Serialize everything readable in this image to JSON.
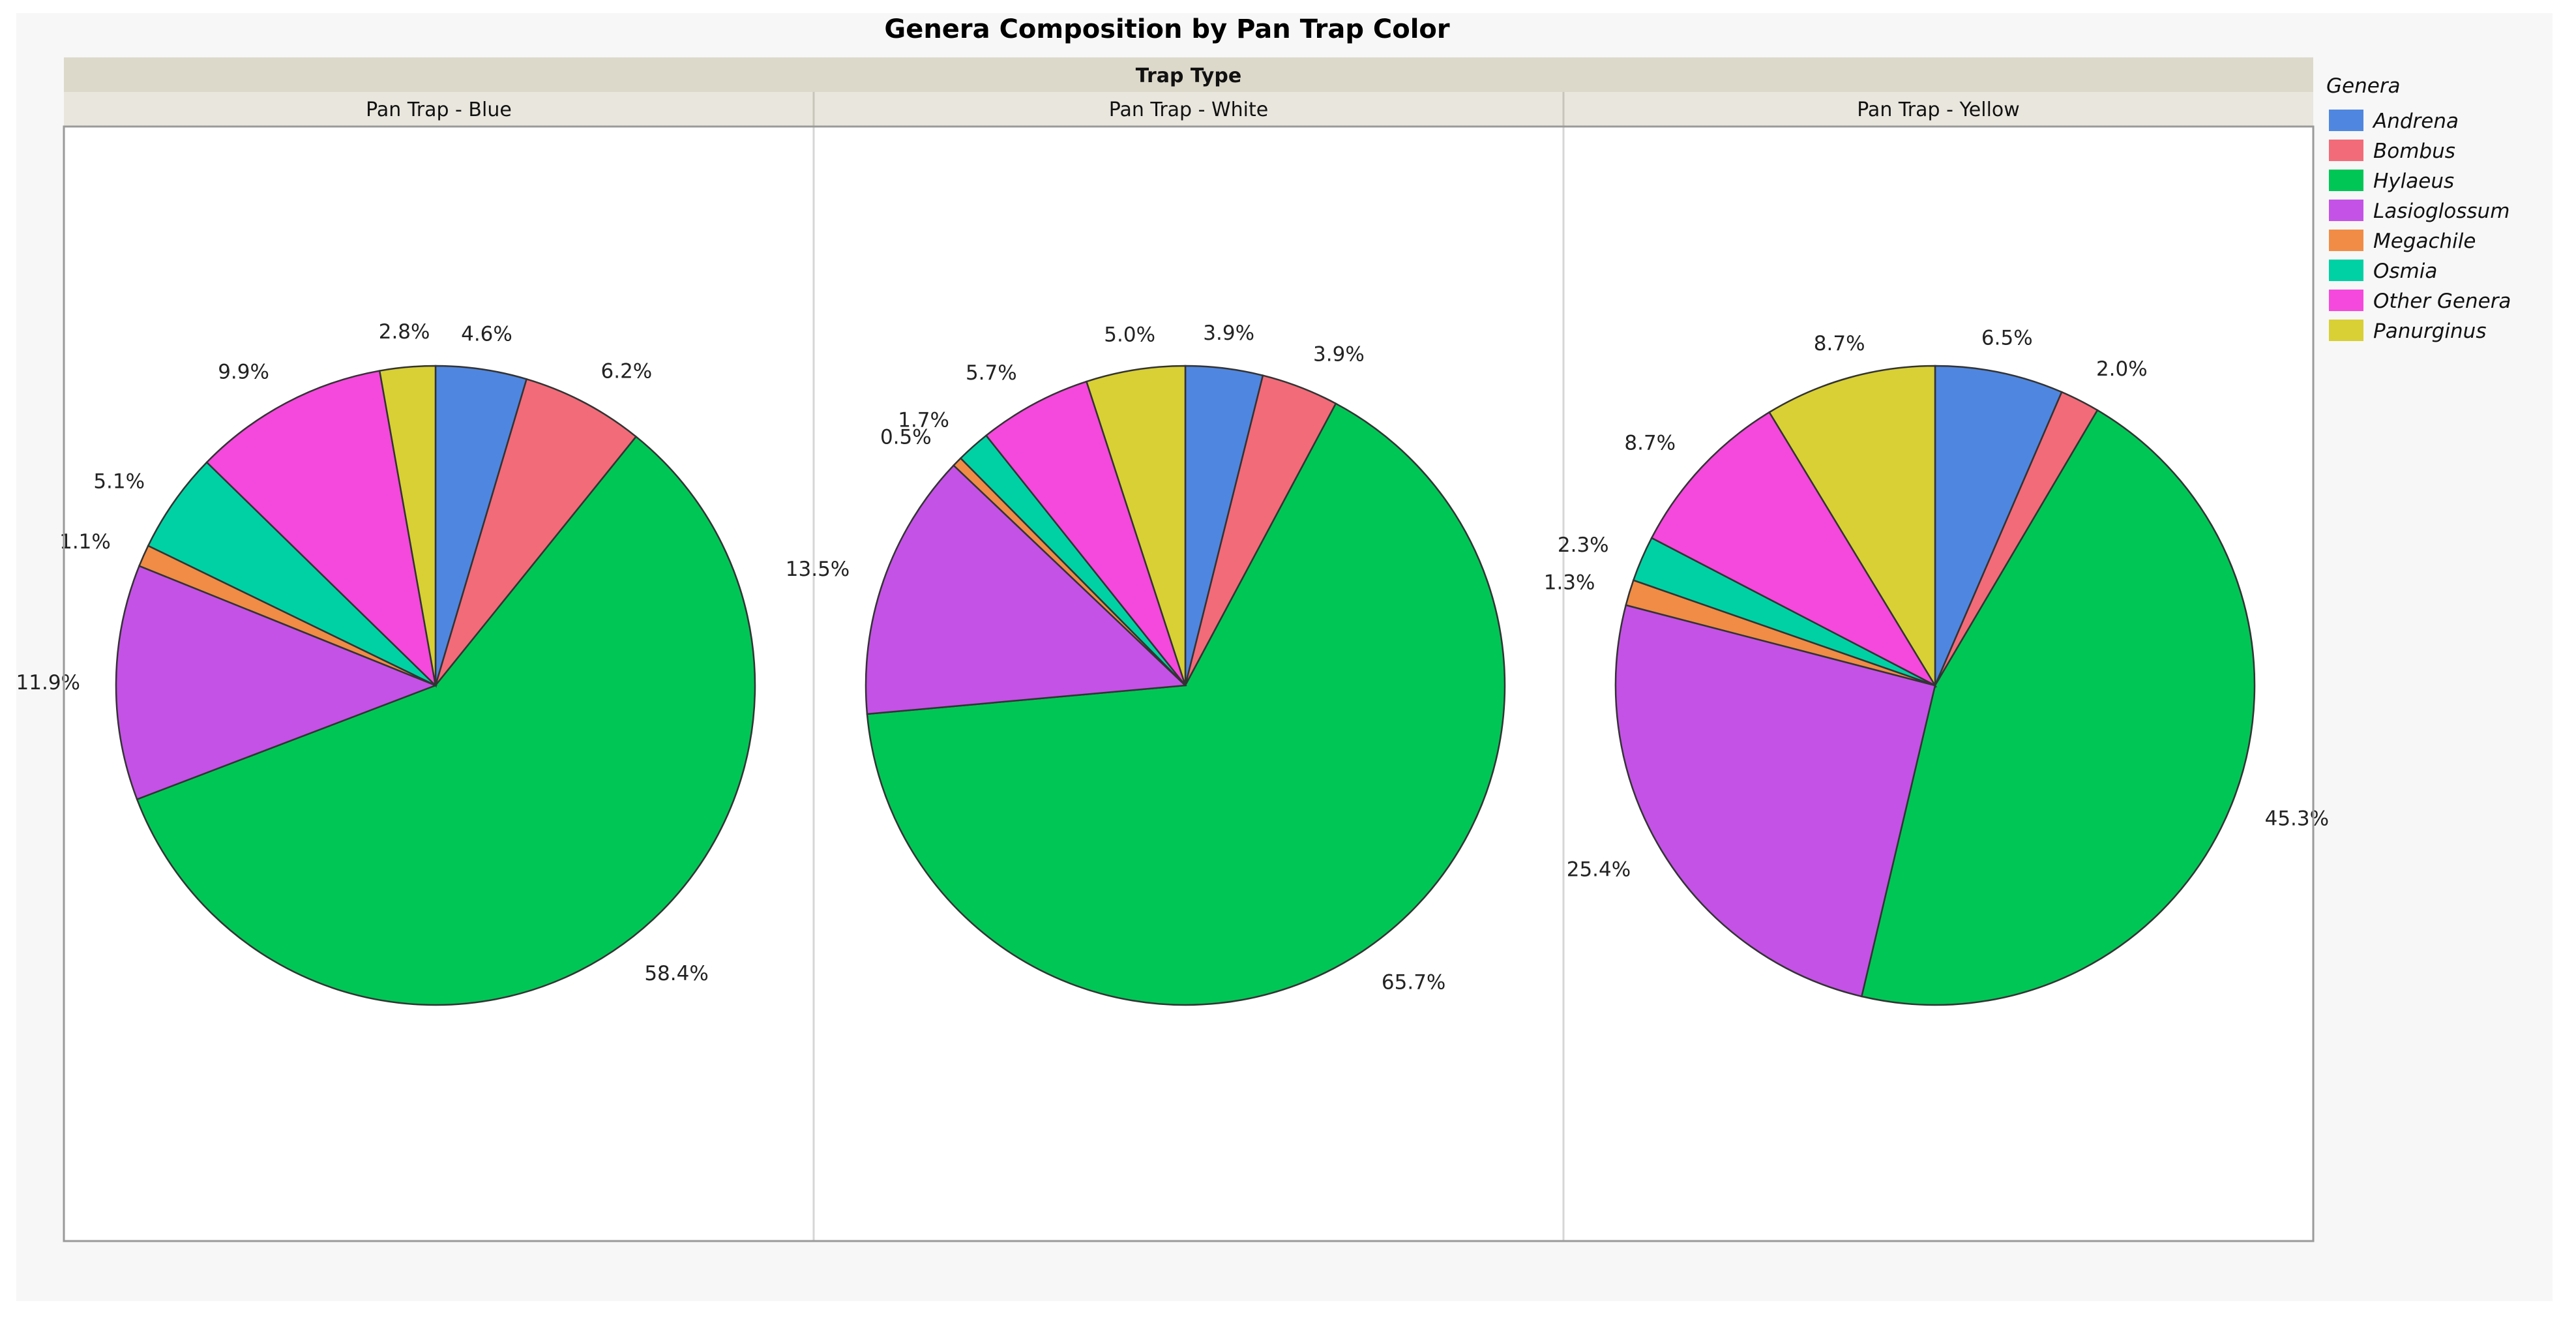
{
  "chart_data": {
    "type": "pie",
    "title": "Genera Composition by Pan Trap Color",
    "facet_header": "Trap Type",
    "legend": {
      "title": "Genera",
      "placement": "right",
      "entries": [
        {
          "name": "Andrena",
          "color": "#4f86e0"
        },
        {
          "name": "Bombus",
          "color": "#f26b78"
        },
        {
          "name": "Hylaeus",
          "color": "#00c656"
        },
        {
          "name": "Lasioglossum",
          "color": "#c452e6"
        },
        {
          "name": "Megachile",
          "color": "#f08c45"
        },
        {
          "name": "Osmia",
          "color": "#00d1a4"
        },
        {
          "name": "Other Genera",
          "color": "#f548dc"
        },
        {
          "name": "Panurginus",
          "color": "#d8d035"
        }
      ]
    },
    "categories": [
      "Andrena",
      "Bombus",
      "Hylaeus",
      "Lasioglossum",
      "Megachile",
      "Osmia",
      "Other Genera",
      "Panurginus"
    ],
    "panels": [
      {
        "name": "Pan Trap - Blue",
        "values": [
          4.6,
          6.2,
          58.4,
          11.9,
          1.1,
          5.1,
          9.9,
          2.8
        ],
        "labels": [
          "4.6%",
          "6.2%",
          "58.4%",
          "11.9%",
          "1.1%",
          "5.1%",
          "9.9%",
          "2.8%"
        ]
      },
      {
        "name": "Pan Trap - White",
        "values": [
          3.9,
          3.9,
          65.7,
          13.5,
          0.5,
          1.7,
          5.7,
          5.0
        ],
        "labels": [
          "3.9%",
          "3.9%",
          "65.7%",
          "13.5%",
          "0.5%",
          "1.7%",
          "5.7%",
          "5.0%"
        ]
      },
      {
        "name": "Pan Trap - Yellow",
        "values": [
          6.5,
          2.0,
          45.3,
          25.4,
          1.3,
          2.3,
          8.7,
          8.7
        ],
        "labels": [
          "6.5%",
          "2.0%",
          "45.3%",
          "25.4%",
          "1.3%",
          "2.3%",
          "8.7%",
          "8.7%"
        ]
      }
    ]
  }
}
